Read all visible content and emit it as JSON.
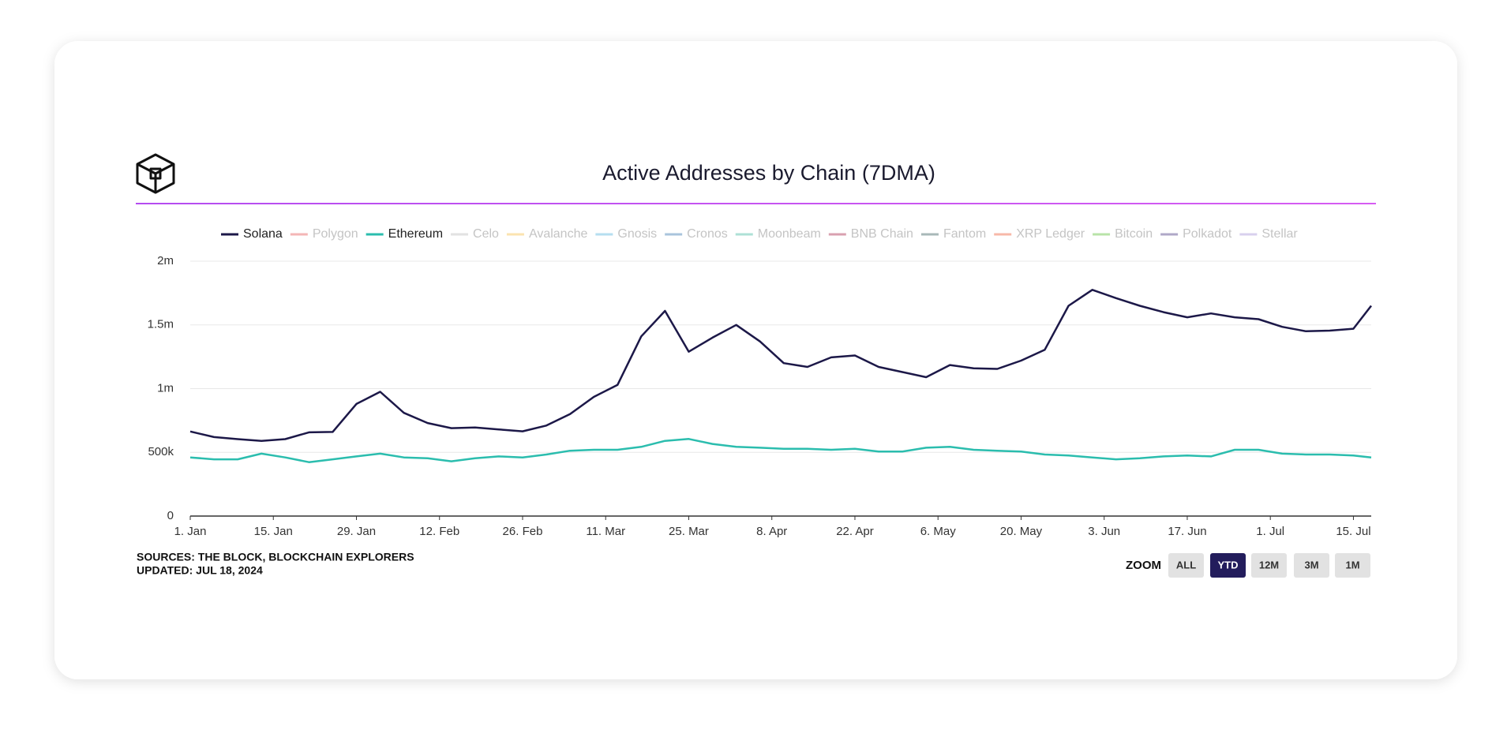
{
  "chart_data": {
    "type": "line",
    "title": "Active Addresses by Chain (7DMA)",
    "x": [
      "01-01",
      "01-05",
      "01-09",
      "01-13",
      "01-17",
      "01-21",
      "01-25",
      "01-29",
      "02-02",
      "02-06",
      "02-10",
      "02-14",
      "02-18",
      "02-22",
      "02-26",
      "03-01",
      "03-05",
      "03-09",
      "03-13",
      "03-17",
      "03-21",
      "03-25",
      "03-29",
      "04-02",
      "04-06",
      "04-10",
      "04-14",
      "04-18",
      "04-22",
      "04-26",
      "04-30",
      "05-04",
      "05-08",
      "05-12",
      "05-16",
      "05-20",
      "05-24",
      "05-28",
      "06-01",
      "06-05",
      "06-09",
      "06-13",
      "06-17",
      "06-21",
      "06-25",
      "06-29",
      "07-03",
      "07-07",
      "07-11",
      "07-15",
      "07-18"
    ],
    "series": [
      {
        "name": "Solana",
        "color": "#1c1848",
        "values": [
          664000,
          620000,
          604000,
          590000,
          604000,
          657000,
          660000,
          880000,
          975000,
          810000,
          730000,
          690000,
          695000,
          680000,
          665000,
          710000,
          800000,
          935000,
          1030000,
          1410000,
          1610000,
          1290000,
          1400000,
          1500000,
          1370000,
          1200000,
          1170000,
          1245000,
          1260000,
          1170000,
          1130000,
          1090000,
          1185000,
          1160000,
          1155000,
          1220000,
          1305000,
          1650000,
          1775000,
          1710000,
          1650000,
          1600000,
          1560000,
          1590000,
          1560000,
          1545000,
          1485000,
          1450000,
          1455000,
          1470000,
          1650000
        ]
      },
      {
        "name": "Ethereum",
        "color": "#2bbdae",
        "values": [
          460000,
          445000,
          445000,
          490000,
          460000,
          423000,
          445000,
          468000,
          490000,
          460000,
          453000,
          430000,
          453000,
          468000,
          460000,
          483000,
          513000,
          520000,
          520000,
          543000,
          590000,
          605000,
          566000,
          543000,
          536000,
          528000,
          528000,
          520000,
          528000,
          506000,
          506000,
          536000,
          543000,
          520000,
          513000,
          506000,
          483000,
          475000,
          460000,
          445000,
          453000,
          468000,
          475000,
          468000,
          520000,
          520000,
          490000,
          483000,
          483000,
          475000,
          460000
        ]
      }
    ],
    "hidden_series": [
      {
        "name": "Polygon",
        "color": "#f4b6b6"
      },
      {
        "name": "Celo",
        "color": "#e2e2e2"
      },
      {
        "name": "Avalanche",
        "color": "#fbe3b0"
      },
      {
        "name": "Gnosis",
        "color": "#b5def0"
      },
      {
        "name": "Cronos",
        "color": "#a9c4dc"
      },
      {
        "name": "Moonbeam",
        "color": "#aee0d6"
      },
      {
        "name": "BNB Chain",
        "color": "#d9a0b0"
      },
      {
        "name": "Fantom",
        "color": "#a8b8b8"
      },
      {
        "name": "XRP Ledger",
        "color": "#f7b8a8"
      },
      {
        "name": "Bitcoin",
        "color": "#b8e3a8"
      },
      {
        "name": "Polkadot",
        "color": "#b0a8c8"
      },
      {
        "name": "Stellar",
        "color": "#d8d0ee"
      }
    ],
    "xlim": [
      "01-01",
      "07-18"
    ],
    "xticks": [
      {
        "value": "01-01",
        "label": "1. Jan"
      },
      {
        "value": "01-15",
        "label": "15. Jan"
      },
      {
        "value": "01-29",
        "label": "29. Jan"
      },
      {
        "value": "02-12",
        "label": "12. Feb"
      },
      {
        "value": "02-26",
        "label": "26. Feb"
      },
      {
        "value": "03-11",
        "label": "11. Mar"
      },
      {
        "value": "03-25",
        "label": "25. Mar"
      },
      {
        "value": "04-08",
        "label": "8. Apr"
      },
      {
        "value": "04-22",
        "label": "22. Apr"
      },
      {
        "value": "05-06",
        "label": "6. May"
      },
      {
        "value": "05-20",
        "label": "20. May"
      },
      {
        "value": "06-03",
        "label": "3. Jun"
      },
      {
        "value": "06-17",
        "label": "17. Jun"
      },
      {
        "value": "07-01",
        "label": "1. Jul"
      },
      {
        "value": "07-15",
        "label": "15. Jul"
      }
    ],
    "ylim": [
      0,
      2000000
    ],
    "yticks": [
      0,
      {
        "value": 500000,
        "label": "500k"
      },
      {
        "value": 1000000,
        "label": "1m"
      },
      {
        "value": 1500000,
        "label": "1.5m"
      },
      {
        "value": 2000000,
        "label": "2m"
      }
    ],
    "grid": true,
    "sources": "SOURCES: THE BLOCK, BLOCKCHAIN EXPLORERS",
    "updated": "UPDATED: JUL 18, 2024",
    "zoom": {
      "label": "ZOOM",
      "buttons": [
        "ALL",
        "YTD",
        "12M",
        "3M",
        "1M"
      ],
      "selected_index": 1
    }
  }
}
